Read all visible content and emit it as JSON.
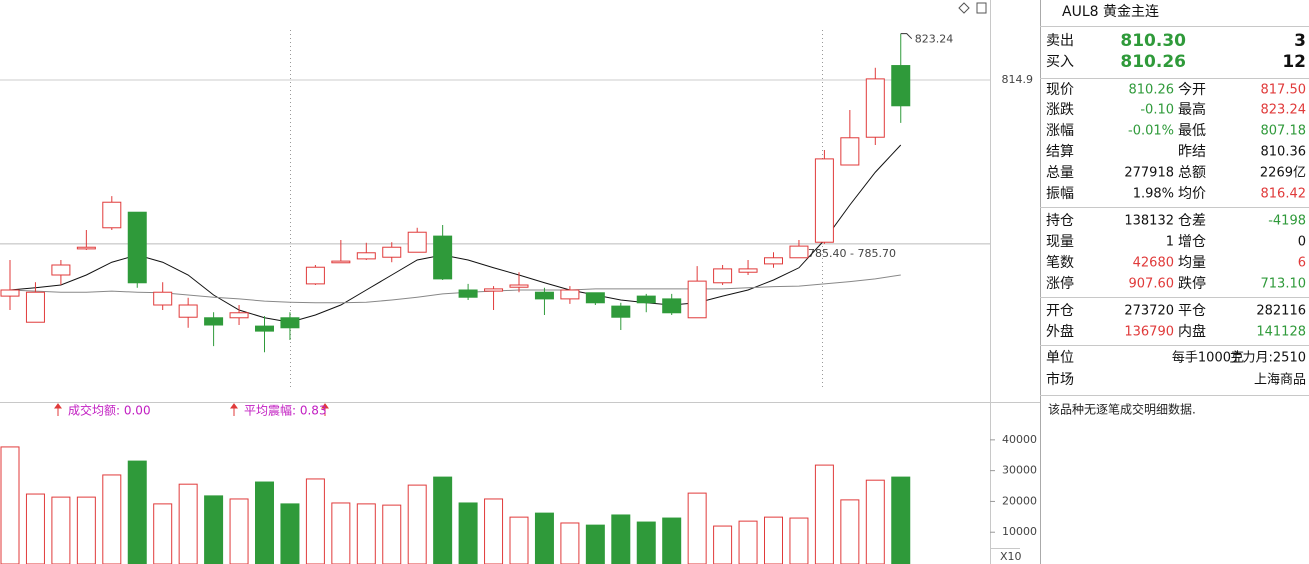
{
  "chart_data": [
    {
      "type": "candlestick",
      "open": [
        776.0,
        771.3,
        779.8,
        784.5,
        788.3,
        791.1,
        774.4,
        772.2,
        772.1,
        772.1,
        770.6,
        772.1,
        778.2,
        782.0,
        782.7,
        783.0,
        783.9,
        786.8,
        777.1,
        776.9,
        777.6,
        776.7,
        775.5,
        776.6,
        774.2,
        776.0,
        775.5,
        772.1,
        778.4,
        780.3,
        781.8,
        782.9,
        785.7,
        799.6,
        804.6,
        817.5
      ],
      "high": [
        782.5,
        778.5,
        782.5,
        787.9,
        794.0,
        791.1,
        778.5,
        775.7,
        773.1,
        774.4,
        772.4,
        773.1,
        781.6,
        786.1,
        785.6,
        785.7,
        788.3,
        788.8,
        778.2,
        777.8,
        780.3,
        777.5,
        777.8,
        776.6,
        774.8,
        776.4,
        776.4,
        781.4,
        781.6,
        782.5,
        783.9,
        786.1,
        802.3,
        809.5,
        817.1,
        823.24
      ],
      "low": [
        773.5,
        771.3,
        778.0,
        784.3,
        787.9,
        777.5,
        773.5,
        770.3,
        767.0,
        770.8,
        765.9,
        768.1,
        778.0,
        782.0,
        782.5,
        782.1,
        783.9,
        778.9,
        775.3,
        773.5,
        776.7,
        772.6,
        774.6,
        774.4,
        769.9,
        773.1,
        772.6,
        772.1,
        778.0,
        779.8,
        781.1,
        782.9,
        785.4,
        799.6,
        803.2,
        807.18
      ],
      "close": [
        777.1,
        776.7,
        781.6,
        784.8,
        792.9,
        778.4,
        776.7,
        774.4,
        770.8,
        773.0,
        769.7,
        770.3,
        781.2,
        782.3,
        783.8,
        784.8,
        787.5,
        779.1,
        775.8,
        777.3,
        778.0,
        775.5,
        777.1,
        774.8,
        772.2,
        774.8,
        773.0,
        778.7,
        780.9,
        780.9,
        782.9,
        785.0,
        800.7,
        804.5,
        815.1,
        810.26
      ],
      "up_color": "#e03a3a",
      "down_color": "#2f9a3a",
      "ma_lines": [
        {
          "color": "#111111",
          "values": [
            777.1,
            777.5,
            778.0,
            779.8,
            782.1,
            783.4,
            782.1,
            779.8,
            776.2,
            773.5,
            772.1,
            771.3,
            772.6,
            774.4,
            777.1,
            779.8,
            782.5,
            783.4,
            782.5,
            781.1,
            779.8,
            778.4,
            777.1,
            776.2,
            775.3,
            774.8,
            774.4,
            774.8,
            776.0,
            777.1,
            778.9,
            781.1,
            786.1,
            792.4,
            798.3,
            803.2
          ]
        },
        {
          "color": "#888888",
          "values": [
            777.1,
            776.9,
            776.7,
            776.7,
            776.9,
            776.7,
            776.6,
            776.2,
            775.8,
            775.5,
            775.1,
            774.9,
            774.8,
            774.8,
            774.9,
            775.3,
            775.8,
            776.4,
            776.7,
            776.9,
            777.1,
            777.1,
            777.1,
            777.3,
            777.3,
            777.3,
            777.3,
            777.3,
            777.3,
            777.5,
            777.7,
            777.8,
            778.2,
            778.6,
            779.1,
            779.8
          ]
        }
      ],
      "ylim": [
        757.3,
        829.3
      ],
      "yticks": [
        814.9
      ],
      "high_label": "823.24",
      "price_line": {
        "value": 785.4,
        "label": "785.40 - 785.70"
      }
    },
    {
      "type": "bar",
      "values": [
        37700,
        22400,
        21400,
        21400,
        28600,
        33100,
        19200,
        25600,
        21800,
        20800,
        26300,
        19200,
        27300,
        19500,
        19200,
        18800,
        25300,
        27900,
        19500,
        20800,
        14900,
        16200,
        13000,
        12300,
        15600,
        13300,
        14600,
        22700,
        12000,
        13600,
        14900,
        14600,
        31800,
        20500,
        26900,
        27900
      ],
      "ylim": [
        0,
        43200
      ],
      "yticks": [
        10000,
        20000,
        30000,
        40000
      ],
      "unit_label": "X10",
      "indicators": [
        "成交均额: 0.00",
        "平均震幅: 0.83"
      ]
    }
  ],
  "header": {
    "symbol": "AUL8 黄金主连"
  },
  "order_book": [
    {
      "label": "卖出",
      "price": "810.30",
      "volume": "3"
    },
    {
      "label": "买入",
      "price": "810.26",
      "volume": "12"
    }
  ],
  "quote": [
    {
      "l1": "现价",
      "v1": "810.26",
      "c1": "green",
      "l2": "今开",
      "v2": "817.50",
      "c2": "red"
    },
    {
      "l1": "涨跌",
      "v1": "-0.10",
      "c1": "green",
      "l2": "最高",
      "v2": "823.24",
      "c2": "red"
    },
    {
      "l1": "涨幅",
      "v1": "-0.01%",
      "c1": "green",
      "l2": "最低",
      "v2": "807.18",
      "c2": "green"
    },
    {
      "l1": "结算",
      "l2": "昨结",
      "v2": "810.36",
      "c2": "black"
    },
    {
      "l1": "总量",
      "v1": "277918",
      "c1": "black",
      "l2": "总额",
      "v2": "2269亿",
      "c2": "black"
    },
    {
      "l1": "振幅",
      "v1": "1.98%",
      "c1": "black",
      "l2": "均价",
      "v2": "816.42",
      "c2": "red"
    },
    {
      "l1": "持仓",
      "v1": "138132",
      "c1": "black",
      "l2": "仓差",
      "v2": "-4198",
      "c2": "green"
    },
    {
      "l1": "现量",
      "v1": "1",
      "c1": "black",
      "l2": "增仓",
      "v2": "0",
      "c2": "black"
    },
    {
      "l1": "笔数",
      "v1": "42680",
      "c1": "red",
      "l2": "均量",
      "v2": "6",
      "c2": "red"
    },
    {
      "l1": "涨停",
      "v1": "907.60",
      "c1": "red",
      "l2": "跌停",
      "v2": "713.10",
      "c2": "green"
    },
    {
      "l1": "开仓",
      "v1": "273720",
      "c1": "black",
      "l2": "平仓",
      "v2": "282116",
      "c2": "black"
    },
    {
      "l1": "外盘",
      "v1": "136790",
      "c1": "red",
      "l2": "内盘",
      "v2": "141128",
      "c2": "green"
    }
  ],
  "footer": {
    "unit_label": "单位",
    "unit": "每手1000克",
    "main_month": "主力月:2510",
    "market_label": "市场",
    "market": "上海商品"
  },
  "note": "该品种无逐笔成交明细数据."
}
